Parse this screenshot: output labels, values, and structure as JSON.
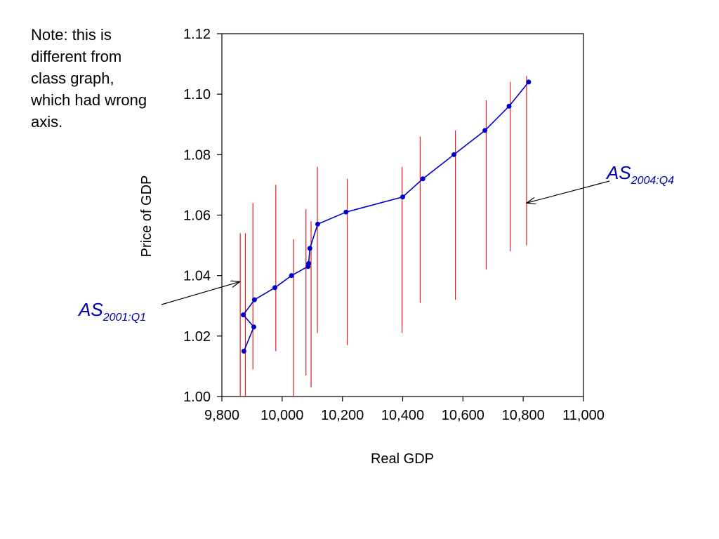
{
  "note": "Note: this is different from class graph, which had wrong axis.",
  "colors": {
    "series": "#0000cc",
    "bars": "#e02020",
    "annotation": "#0000aa",
    "axis": "#000000"
  },
  "chart_data": {
    "type": "line",
    "xlabel": "Real GDP",
    "ylabel": "Price of GDP",
    "xlim": [
      9800,
      11000
    ],
    "ylim": [
      1.0,
      1.12
    ],
    "x_ticks": [
      "9,800",
      "10,000",
      "10,200",
      "10,400",
      "10,600",
      "10,800",
      "11,000"
    ],
    "x_tick_values": [
      9800,
      10000,
      10200,
      10400,
      10600,
      10800,
      11000
    ],
    "y_ticks": [
      "1.00",
      "1.02",
      "1.04",
      "1.06",
      "1.08",
      "1.10",
      "1.12"
    ],
    "y_tick_values": [
      1.0,
      1.02,
      1.04,
      1.06,
      1.08,
      1.1,
      1.12
    ],
    "series": [
      {
        "points": [
          [
            9873,
            1.015
          ],
          [
            9906,
            1.023
          ],
          [
            9871,
            1.027
          ],
          [
            9908,
            1.032
          ],
          [
            9976,
            1.036
          ],
          [
            10031,
            1.04
          ],
          [
            10086,
            1.043
          ],
          [
            10088,
            1.044
          ],
          [
            10092,
            1.049
          ],
          [
            10118,
            1.057
          ],
          [
            10212,
            1.061
          ],
          [
            10400,
            1.066
          ],
          [
            10467,
            1.072
          ],
          [
            10570,
            1.08
          ],
          [
            10673,
            1.088
          ],
          [
            10753,
            1.096
          ],
          [
            10818,
            1.104
          ]
        ]
      }
    ],
    "vertical_bars": [
      {
        "x": 9861,
        "y_low": 1.0,
        "y_high": 1.054
      },
      {
        "x": 9878,
        "y_low": 1.0,
        "y_high": 1.054
      },
      {
        "x": 9903,
        "y_low": 1.009,
        "y_high": 1.064
      },
      {
        "x": 9979,
        "y_low": 1.015,
        "y_high": 1.07
      },
      {
        "x": 10038,
        "y_low": 1.0,
        "y_high": 1.052
      },
      {
        "x": 10079,
        "y_low": 1.007,
        "y_high": 1.062
      },
      {
        "x": 10096,
        "y_low": 1.003,
        "y_high": 1.058
      },
      {
        "x": 10117,
        "y_low": 1.021,
        "y_high": 1.076
      },
      {
        "x": 10216,
        "y_low": 1.017,
        "y_high": 1.072
      },
      {
        "x": 10398,
        "y_low": 1.021,
        "y_high": 1.076
      },
      {
        "x": 10458,
        "y_low": 1.031,
        "y_high": 1.086
      },
      {
        "x": 10575,
        "y_low": 1.032,
        "y_high": 1.088
      },
      {
        "x": 10677,
        "y_low": 1.042,
        "y_high": 1.098
      },
      {
        "x": 10757,
        "y_low": 1.048,
        "y_high": 1.104
      },
      {
        "x": 10811,
        "y_low": 1.05,
        "y_high": 1.106
      }
    ],
    "annotations": [
      {
        "main": "AS",
        "sub": "2001:Q1",
        "target": [
          9860,
          1.038
        ]
      },
      {
        "main": "AS",
        "sub": "2004:Q4",
        "target": [
          10811,
          1.064
        ]
      }
    ]
  }
}
